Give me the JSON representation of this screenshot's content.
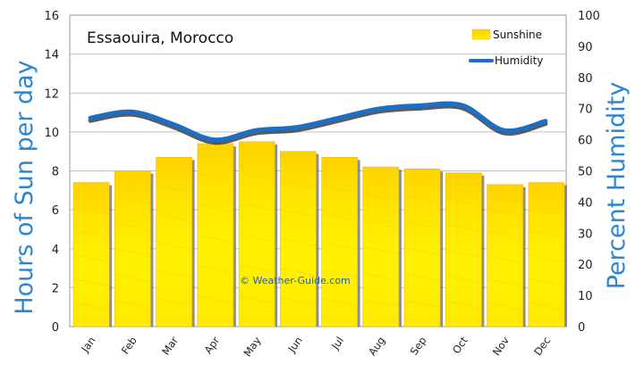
{
  "chart_data": {
    "type": "bar",
    "title": "Essaouira, Morocco",
    "categories": [
      "Jan",
      "Feb",
      "Mar",
      "Apr",
      "May",
      "Jun",
      "Jul",
      "Aug",
      "Sep",
      "Oct",
      "Nov",
      "Dec"
    ],
    "series": [
      {
        "name": "Sunshine",
        "type": "bar",
        "axis": "left",
        "values": [
          7.4,
          8.0,
          8.7,
          9.4,
          9.5,
          9.0,
          8.7,
          8.2,
          8.1,
          7.9,
          7.3,
          7.4
        ]
      },
      {
        "name": "Humidity",
        "type": "line",
        "axis": "right",
        "values": [
          67,
          69,
          65,
          60,
          63,
          64,
          67,
          70,
          71,
          71,
          63,
          66
        ]
      }
    ],
    "ylabel_left": "Hours of Sun per day",
    "ylabel_right": "Percent Humidity",
    "ylim_left": [
      0,
      16
    ],
    "ylim_right": [
      0,
      100
    ],
    "yticks_left": [
      "0",
      "2",
      "4",
      "6",
      "8",
      "10",
      "12",
      "14",
      "16"
    ],
    "yticks_right": [
      "0",
      "10",
      "20",
      "30",
      "40",
      "50",
      "60",
      "70",
      "80",
      "90",
      "100"
    ],
    "grid": true,
    "legend_position": "top-right",
    "watermark": "© Weather-Guide.com",
    "colors": {
      "bar": "#ffe600",
      "bar_edge": "#f2b800",
      "line": "#1a6fc8",
      "axis_title": "#2a86d2",
      "grid": "#c0c0c0"
    }
  }
}
